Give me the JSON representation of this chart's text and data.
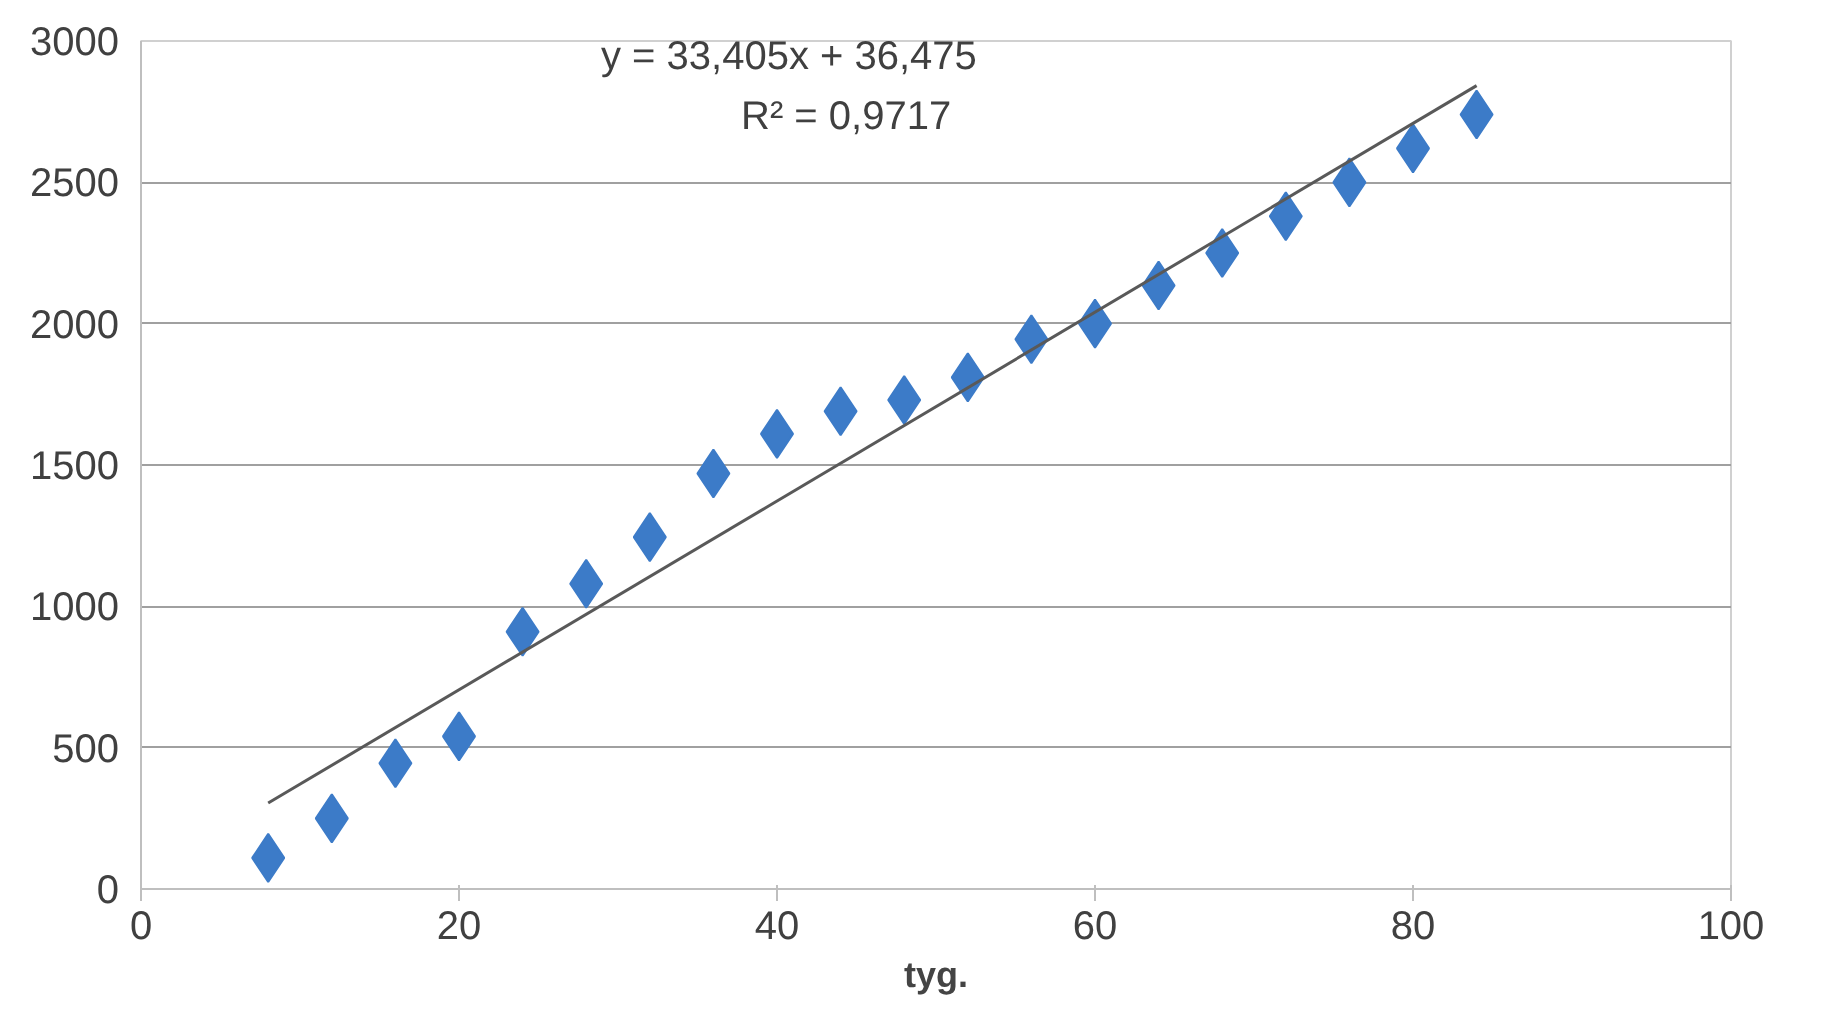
{
  "chart_data": {
    "type": "scatter",
    "xlabel": "tyg.",
    "xlim": [
      0,
      100
    ],
    "xticks": [
      0,
      20,
      40,
      60,
      80,
      100
    ],
    "ylim": [
      0,
      3000
    ],
    "yticks": [
      0,
      500,
      1000,
      1500,
      2000,
      2500,
      3000
    ],
    "grid": "y",
    "marker": "diamond",
    "series": [
      {
        "color": "#3c7bc8",
        "x": [
          8,
          12,
          16,
          20,
          24,
          28,
          32,
          36,
          40,
          44,
          48,
          52,
          56,
          60,
          64,
          68,
          72,
          76,
          80,
          84
        ],
        "values": [
          110,
          250,
          445,
          540,
          910,
          1080,
          1245,
          1470,
          1610,
          1690,
          1730,
          1810,
          1945,
          2000,
          2135,
          2250,
          2380,
          2500,
          2620,
          2740
        ]
      },
      {
        "type": "line",
        "color": "#595959",
        "marker": "none",
        "x": [
          8,
          84
        ],
        "values": [
          304,
          2842
        ]
      }
    ],
    "annotations": [
      "y = 33,405x + 36,475",
      "R² = 0,9717"
    ]
  }
}
